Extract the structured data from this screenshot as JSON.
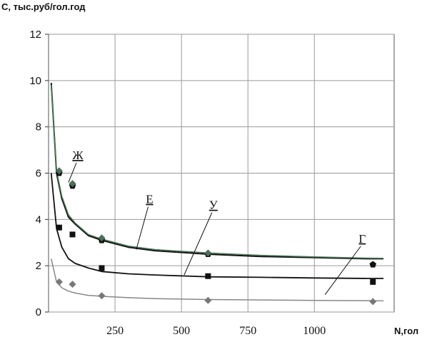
{
  "chart_data": {
    "type": "line",
    "ylabel": "С, тыс.руб/гол.год",
    "xlabel": "N,гол",
    "xlim": [
      0,
      1300
    ],
    "ylim": [
      0,
      12
    ],
    "x_ticks": [
      250,
      500,
      750,
      1000
    ],
    "y_ticks": [
      0,
      2,
      4,
      6,
      8,
      10,
      12
    ],
    "grid": true,
    "series": [
      {
        "name": "Ж",
        "color": "#111111",
        "width": 2,
        "x": [
          10,
          30,
          50,
          75,
          100,
          150,
          200,
          300,
          400,
          600,
          800,
          1000,
          1200,
          1260
        ],
        "values": [
          9.9,
          6.0,
          4.9,
          4.1,
          3.8,
          3.3,
          3.1,
          2.8,
          2.65,
          2.5,
          2.4,
          2.35,
          2.3,
          2.3
        ]
      },
      {
        "name": "Е",
        "color": "#4d7a5a",
        "width": 1.5,
        "x": [
          10,
          30,
          50,
          75,
          100,
          150,
          200,
          300,
          400,
          600,
          800,
          1000,
          1200,
          1260
        ],
        "values": [
          9.8,
          6.1,
          5.0,
          4.2,
          3.85,
          3.35,
          3.15,
          2.85,
          2.7,
          2.55,
          2.45,
          2.38,
          2.33,
          2.32
        ]
      },
      {
        "name": "У",
        "color": "#111111",
        "width": 1.8,
        "x": [
          10,
          30,
          50,
          75,
          100,
          150,
          200,
          300,
          400,
          600,
          800,
          1000,
          1200,
          1260
        ],
        "values": [
          6.0,
          3.6,
          2.8,
          2.3,
          2.1,
          1.9,
          1.75,
          1.65,
          1.6,
          1.52,
          1.5,
          1.47,
          1.45,
          1.45
        ]
      },
      {
        "name": "Г",
        "color": "#888888",
        "width": 1.5,
        "x": [
          10,
          30,
          50,
          75,
          100,
          150,
          200,
          300,
          400,
          600,
          800,
          1000,
          1200,
          1260
        ],
        "values": [
          2.3,
          1.3,
          1.05,
          0.9,
          0.82,
          0.72,
          0.68,
          0.62,
          0.58,
          0.54,
          0.52,
          0.5,
          0.49,
          0.48
        ]
      }
    ],
    "points": [
      {
        "shape": "pentagon",
        "color": "#111111",
        "x": [
          40,
          90,
          200,
          600,
          1220
        ],
        "values": [
          6.0,
          5.45,
          3.1,
          2.5,
          2.05
        ]
      },
      {
        "shape": "diamond",
        "color": "#4d6f5a",
        "x": [
          40,
          90,
          200,
          600
        ],
        "values": [
          6.1,
          5.55,
          3.2,
          2.55
        ]
      },
      {
        "shape": "square",
        "color": "#111111",
        "x": [
          40,
          90,
          200,
          600,
          1220
        ],
        "values": [
          3.65,
          3.35,
          1.9,
          1.55,
          1.3
        ]
      },
      {
        "shape": "diamond",
        "color": "#777777",
        "x": [
          40,
          90,
          200,
          600,
          1220
        ],
        "values": [
          1.3,
          1.2,
          0.7,
          0.5,
          0.45
        ]
      }
    ],
    "annotations": [
      {
        "text": "Ж",
        "x": 110,
        "y": 6.6,
        "arrow_to": [
          75,
          5.6
        ]
      },
      {
        "text": "Е",
        "x": 380,
        "y": 4.7,
        "arrow_to": [
          330,
          2.7
        ]
      },
      {
        "text": "У",
        "x": 620,
        "y": 4.45,
        "arrow_to": [
          510,
          1.6
        ]
      },
      {
        "text": "Г",
        "x": 1180,
        "y": 3.0,
        "arrow_to": [
          1040,
          0.75
        ]
      }
    ]
  }
}
